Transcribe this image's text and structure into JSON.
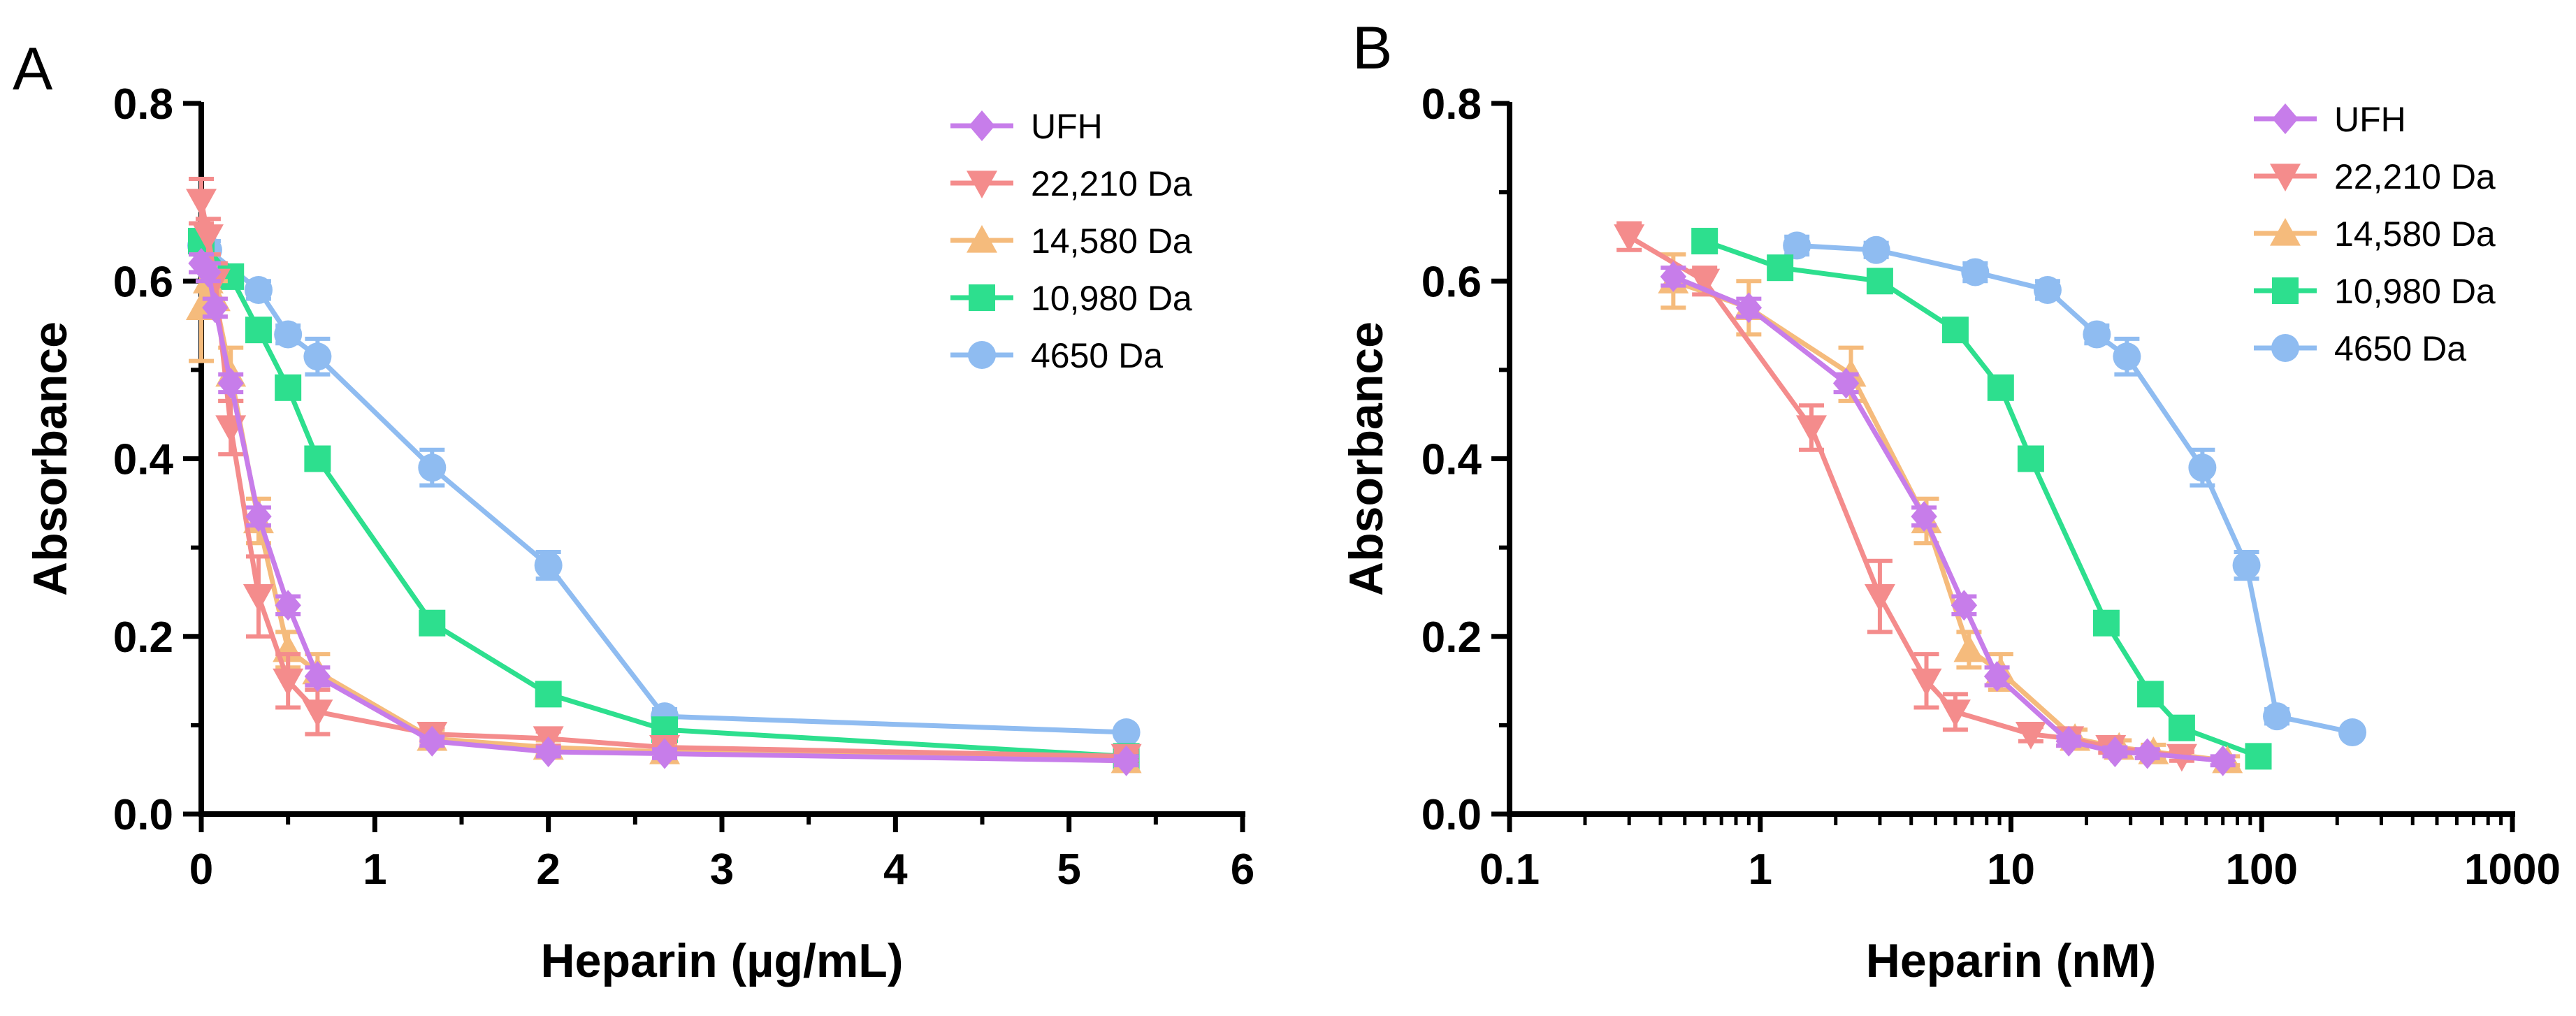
{
  "chart_data": [
    {
      "panel": "A",
      "type": "line",
      "title": "",
      "xlabel": "Heparin (µg/mL)",
      "ylabel": "Absorbance",
      "xscale": "linear",
      "xlim": [
        0,
        6
      ],
      "ylim": [
        0,
        0.8
      ],
      "x_ticks": [
        0,
        1,
        2,
        3,
        4,
        5,
        6
      ],
      "x_tick_labels": [
        "0",
        "1",
        "2",
        "3",
        "4",
        "5",
        "6"
      ],
      "y_ticks": [
        0,
        0.2,
        0.4,
        0.6,
        0.8
      ],
      "y_tick_labels": [
        "0.0",
        "0.2",
        "0.4",
        "0.6",
        "0.8"
      ],
      "legend_position": "top-right",
      "series": [
        {
          "name": "UFH",
          "marker": "diamond",
          "color": "#c77dea",
          "points": [
            [
              0,
              0.62
            ],
            [
              0.04,
              0.61
            ],
            [
              0.08,
              0.57
            ],
            [
              0.17,
              0.485
            ],
            [
              0.33,
              0.335
            ],
            [
              0.5,
              0.235
            ],
            [
              0.67,
              0.155
            ],
            [
              1.33,
              0.082
            ],
            [
              2,
              0.07
            ],
            [
              2.67,
              0.068
            ],
            [
              5.33,
              0.06
            ]
          ],
          "errors": [
            0.01,
            0.01,
            0.01,
            0.01,
            0.01,
            0.01,
            0.01,
            0.005,
            0.005,
            0.005,
            0.005
          ]
        },
        {
          "name": "22,210 Da",
          "marker": "triangle-down",
          "color": "#f48c8c",
          "points": [
            [
              0,
              0.69
            ],
            [
              0.04,
              0.65
            ],
            [
              0.08,
              0.6
            ],
            [
              0.17,
              0.435
            ],
            [
              0.33,
              0.245
            ],
            [
              0.5,
              0.15
            ],
            [
              0.67,
              0.115
            ],
            [
              1.33,
              0.09
            ],
            [
              2,
              0.085
            ],
            [
              2.67,
              0.075
            ],
            [
              5.33,
              0.065
            ]
          ],
          "errors": [
            0.025,
            0.02,
            0.02,
            0.03,
            0.045,
            0.03,
            0.025,
            0.008,
            0.008,
            0.006,
            0.005
          ]
        },
        {
          "name": "14,580 Da",
          "marker": "triangle-up",
          "color": "#f5bb7c",
          "points": [
            [
              0,
              0.57
            ],
            [
              0.04,
              0.6
            ],
            [
              0.08,
              0.58
            ],
            [
              0.17,
              0.495
            ],
            [
              0.33,
              0.33
            ],
            [
              0.5,
              0.185
            ],
            [
              0.67,
              0.16
            ],
            [
              1.33,
              0.085
            ],
            [
              2,
              0.075
            ],
            [
              2.67,
              0.07
            ],
            [
              5.33,
              0.06
            ]
          ],
          "errors": [
            0.06,
            0.03,
            0.02,
            0.03,
            0.025,
            0.02,
            0.02,
            0.01,
            0.008,
            0.008,
            0.005
          ]
        },
        {
          "name": "10,980 Da",
          "marker": "square",
          "color": "#2ddf8e",
          "points": [
            [
              0,
              0.645
            ],
            [
              0.17,
              0.605
            ],
            [
              0.33,
              0.545
            ],
            [
              0.5,
              0.48
            ],
            [
              0.67,
              0.4
            ],
            [
              1.33,
              0.215
            ],
            [
              2,
              0.135
            ],
            [
              2.67,
              0.095
            ],
            [
              5.33,
              0.065
            ]
          ],
          "errors": [
            0.01,
            0.01,
            0.01,
            0.01,
            0.01,
            0.01,
            0.01,
            0.005,
            0.005
          ]
        },
        {
          "name": "4650 Da",
          "marker": "circle",
          "color": "#8fbcf1",
          "points": [
            [
              0,
              0.64
            ],
            [
              0.04,
              0.635
            ],
            [
              0.33,
              0.59
            ],
            [
              0.5,
              0.54
            ],
            [
              0.67,
              0.515
            ],
            [
              1.33,
              0.39
            ],
            [
              2,
              0.28
            ],
            [
              2.67,
              0.11
            ],
            [
              5.33,
              0.092
            ]
          ],
          "errors": [
            0.01,
            0.01,
            0.01,
            0.01,
            0.02,
            0.02,
            0.015,
            0.008,
            0.005
          ]
        }
      ]
    },
    {
      "panel": "B",
      "type": "line",
      "title": "",
      "xlabel": "Heparin (nM)",
      "ylabel": "Absorbance",
      "xscale": "log",
      "xlim": [
        0.1,
        1000
      ],
      "ylim": [
        0,
        0.8
      ],
      "x_ticks": [
        0.1,
        1,
        10,
        100,
        1000
      ],
      "x_tick_labels": [
        "0.1",
        "1",
        "10",
        "100",
        "1000"
      ],
      "y_ticks": [
        0,
        0.2,
        0.4,
        0.6,
        0.8
      ],
      "y_tick_labels": [
        "0.0",
        "0.2",
        "0.4",
        "0.6",
        "0.8"
      ],
      "legend_position": "top-right",
      "series": [
        {
          "name": "UFH",
          "marker": "diamond",
          "color": "#c77dea",
          "points": [
            [
              0.45,
              0.605
            ],
            [
              0.9,
              0.57
            ],
            [
              2.2,
              0.485
            ],
            [
              4.5,
              0.335
            ],
            [
              6.5,
              0.235
            ],
            [
              8.8,
              0.155
            ],
            [
              17,
              0.082
            ],
            [
              26,
              0.07
            ],
            [
              35,
              0.068
            ],
            [
              70,
              0.06
            ]
          ],
          "errors": [
            0.01,
            0.01,
            0.01,
            0.01,
            0.01,
            0.01,
            0.005,
            0.005,
            0.005,
            0.005
          ]
        },
        {
          "name": "22,210 Da",
          "marker": "triangle-down",
          "color": "#f48c8c",
          "points": [
            [
              0.3,
              0.65
            ],
            [
              0.6,
              0.6
            ],
            [
              1.6,
              0.435
            ],
            [
              3,
              0.245
            ],
            [
              4.6,
              0.15
            ],
            [
              6,
              0.115
            ],
            [
              12,
              0.09
            ],
            [
              17,
              0.085
            ],
            [
              25,
              0.075
            ],
            [
              48,
              0.065
            ]
          ],
          "errors": [
            0.015,
            0.015,
            0.025,
            0.04,
            0.03,
            0.02,
            0.008,
            0.008,
            0.006,
            0.005
          ]
        },
        {
          "name": "14,580 Da",
          "marker": "triangle-up",
          "color": "#f5bb7c",
          "points": [
            [
              0.45,
              0.6
            ],
            [
              0.9,
              0.57
            ],
            [
              2.3,
              0.495
            ],
            [
              4.6,
              0.33
            ],
            [
              6.8,
              0.185
            ],
            [
              9.1,
              0.16
            ],
            [
              18,
              0.085
            ],
            [
              27,
              0.075
            ],
            [
              37,
              0.07
            ],
            [
              73,
              0.06
            ]
          ],
          "errors": [
            0.03,
            0.03,
            0.03,
            0.025,
            0.02,
            0.02,
            0.01,
            0.008,
            0.008,
            0.005
          ]
        },
        {
          "name": "10,980 Da",
          "marker": "square",
          "color": "#2ddf8e",
          "points": [
            [
              0.6,
              0.645
            ],
            [
              1.2,
              0.615
            ],
            [
              3,
              0.6
            ],
            [
              6,
              0.545
            ],
            [
              9.1,
              0.48
            ],
            [
              12,
              0.4
            ],
            [
              24,
              0.215
            ],
            [
              36,
              0.135
            ],
            [
              48,
              0.097
            ],
            [
              97,
              0.065
            ]
          ],
          "errors": [
            0.01,
            0.01,
            0.01,
            0.01,
            0.01,
            0.01,
            0.01,
            0.01,
            0.005,
            0.005
          ]
        },
        {
          "name": "4650 Da",
          "marker": "circle",
          "color": "#8fbcf1",
          "points": [
            [
              1.4,
              0.64
            ],
            [
              2.9,
              0.635
            ],
            [
              7.2,
              0.61
            ],
            [
              14,
              0.59
            ],
            [
              22,
              0.54
            ],
            [
              29,
              0.515
            ],
            [
              58,
              0.39
            ],
            [
              87,
              0.28
            ],
            [
              115,
              0.11
            ],
            [
              230,
              0.092
            ]
          ],
          "errors": [
            0.01,
            0.008,
            0.01,
            0.01,
            0.01,
            0.02,
            0.02,
            0.015,
            0.008,
            0.005
          ]
        }
      ]
    }
  ]
}
